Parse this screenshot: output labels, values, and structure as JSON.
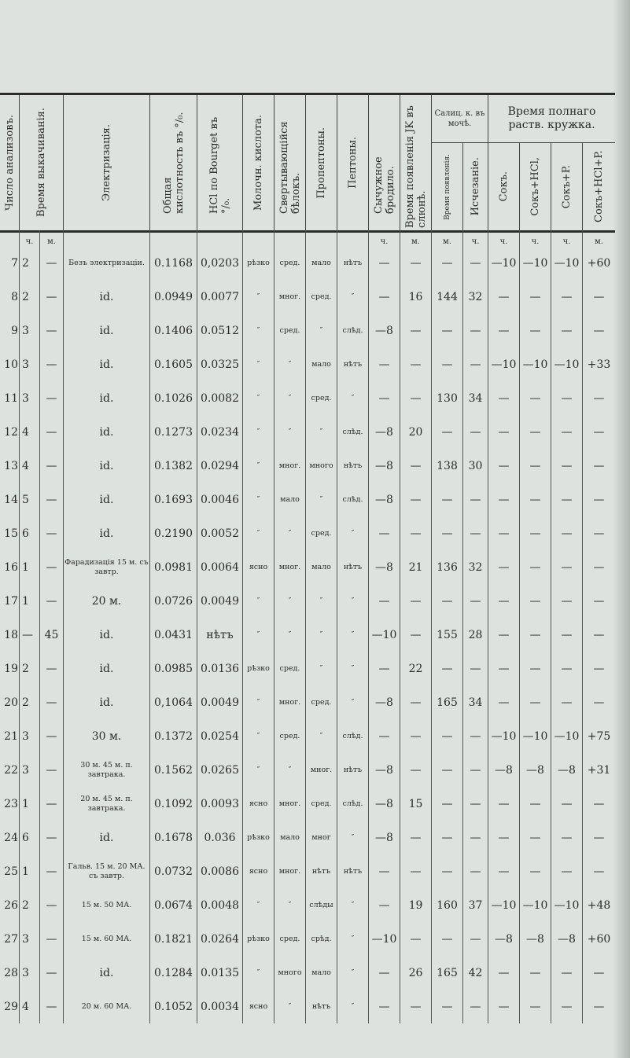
{
  "header": {
    "count": "Число анализовъ.",
    "pump_time": "Время выкачиванія.",
    "electrization": "Электризація.",
    "total_acidity": "Общая кислотность въ °/₀.",
    "hcl_bourget": "HCl по Bourget въ °/₀.",
    "lactic": "Молочн. кислота.",
    "curdling": "Свертывающійся бѣлокъ.",
    "propeptones": "Пропептоны.",
    "peptones": "Пептоны.",
    "rennet": "Сычужное бродило.",
    "jk_time": "Время появленія JK въ слюнѣ.",
    "salicyl_group": "Салиц. к. въ мочѣ.",
    "salicyl_appear": "Время появленія.",
    "salicyl_disappear": "Исчезаніе.",
    "dissolve_group": "Время полнаго раств. кружка.",
    "juice": "Сокъ.",
    "juice_hcl": "Сокъ+HCl,",
    "juice_p": "Сокъ+P.",
    "juice_hcl_p": "Сокъ+HCl+P."
  },
  "units": [
    "ч.",
    "м.",
    "ч.",
    "м.",
    "м.",
    "ч.",
    "ч.",
    "ч.",
    "ч.",
    "м."
  ],
  "rows": [
    [
      "7",
      "2",
      "—",
      "Безъ электризаціи.",
      "0.1168",
      "0,0203",
      "рѣзко",
      "сред.",
      "мало",
      "нѣтъ",
      "—",
      "—",
      "—",
      "—",
      "—10",
      "—10",
      "—10",
      "+60"
    ],
    [
      "8",
      "2",
      "—",
      "id.",
      "0.0949",
      "0.0077",
      "″",
      "мног.",
      "сред.",
      "″",
      "—",
      "16",
      "144",
      "32",
      "—",
      "—",
      "—",
      "—"
    ],
    [
      "9",
      "3",
      "—",
      "id.",
      "0.1406",
      "0.0512",
      "″",
      "сред.",
      "″",
      "слѣд.",
      "—8",
      "—",
      "—",
      "—",
      "—",
      "—",
      "—",
      "—"
    ],
    [
      "10",
      "3",
      "—",
      "id.",
      "0.1605",
      "0.0325",
      "″",
      "″",
      "мало",
      "нѣтъ",
      "—",
      "—",
      "—",
      "—",
      "—10",
      "—10",
      "—10",
      "+33"
    ],
    [
      "11",
      "3",
      "—",
      "id.",
      "0.1026",
      "0.0082",
      "″",
      "″",
      "сред.",
      "″",
      "—",
      "—",
      "130",
      "34",
      "—",
      "—",
      "—",
      "—"
    ],
    [
      "12",
      "4",
      "—",
      "id.",
      "0.1273",
      "0.0234",
      "″",
      "″",
      "″",
      "слѣд.",
      "—8",
      "20",
      "—",
      "—",
      "—",
      "—",
      "—",
      "—"
    ],
    [
      "13",
      "4",
      "—",
      "id.",
      "0.1382",
      "0.0294",
      "″",
      "мног.",
      "много",
      "нѣтъ",
      "—8",
      "—",
      "138",
      "30",
      "—",
      "—",
      "—",
      "—"
    ],
    [
      "14",
      "5",
      "—",
      "id.",
      "0.1693",
      "0.0046",
      "″",
      "мало",
      "″",
      "слѣд.",
      "—8",
      "—",
      "—",
      "—",
      "—",
      "—",
      "—",
      "—"
    ],
    [
      "15",
      "6",
      "—",
      "id.",
      "0.2190",
      "0.0052",
      "″",
      "″",
      "сред.",
      "″",
      "—",
      "—",
      "—",
      "—",
      "—",
      "—",
      "—",
      "—"
    ],
    [
      "16",
      "1",
      "—",
      "Фарадизація 15 м. съ завтр.",
      "0.0981",
      "0.0064",
      "ясно",
      "мног.",
      "мало",
      "нѣтъ",
      "—8",
      "21",
      "136",
      "32",
      "—",
      "—",
      "—",
      "—"
    ],
    [
      "17",
      "1",
      "—",
      "20 м.",
      "0.0726",
      "0.0049",
      "″",
      "″",
      "″",
      "″",
      "—",
      "—",
      "—",
      "—",
      "—",
      "—",
      "—",
      "—"
    ],
    [
      "18",
      "—",
      "45",
      "id.",
      "0.0431",
      "нѣтъ",
      "″",
      "″",
      "″",
      "″",
      "—10",
      "—",
      "155",
      "28",
      "—",
      "—",
      "—",
      "—"
    ],
    [
      "19",
      "2",
      "—",
      "id.",
      "0.0985",
      "0.0136",
      "рѣзко",
      "сред.",
      "″",
      "″",
      "—",
      "22",
      "—",
      "—",
      "—",
      "—",
      "—",
      "—"
    ],
    [
      "20",
      "2",
      "—",
      "id.",
      "0,1064",
      "0.0049",
      "″",
      "мног.",
      "сред.",
      "″",
      "—8",
      "—",
      "165",
      "34",
      "—",
      "—",
      "—",
      "—"
    ],
    [
      "21",
      "3",
      "—",
      "30 м.",
      "0.1372",
      "0.0254",
      "″",
      "сред.",
      "″",
      "слѣд.",
      "—",
      "—",
      "—",
      "—",
      "—10",
      "—10",
      "—10",
      "+75"
    ],
    [
      "22",
      "3",
      "—",
      "30 м. 45 м. п. завтрака.",
      "0.1562",
      "0.0265",
      "″",
      "″",
      "мног.",
      "нѣтъ",
      "—8",
      "—",
      "—",
      "—",
      "—8",
      "—8",
      "—8",
      "+31"
    ],
    [
      "23",
      "1",
      "—",
      "20 м. 45 м. п. завтрака.",
      "0.1092",
      "0.0093",
      "ясно",
      "мног.",
      "сред.",
      "слѣд.",
      "—8",
      "15",
      "—",
      "—",
      "—",
      "—",
      "—",
      "—"
    ],
    [
      "24",
      "6",
      "—",
      "id.",
      "0.1678",
      "0.036",
      "рѣзко",
      "мало",
      "мног",
      "″",
      "—8",
      "—",
      "—",
      "—",
      "—",
      "—",
      "—",
      "—"
    ],
    [
      "25",
      "1",
      "—",
      "Гальв. 15 м. 20 МА. съ завтр.",
      "0.0732",
      "0.0086",
      "ясно",
      "мног.",
      "нѣтъ",
      "нѣтъ",
      "—",
      "—",
      "—",
      "—",
      "—",
      "—",
      "—",
      "—"
    ],
    [
      "26",
      "2",
      "—",
      "15 м. 50 МА.",
      "0.0674",
      "0.0048",
      "″",
      "″",
      "слѣды",
      "″",
      "—",
      "19",
      "160",
      "37",
      "—10",
      "—10",
      "—10",
      "+48"
    ],
    [
      "27",
      "3",
      "—",
      "15 м. 60 МА.",
      "0.1821",
      "0.0264",
      "рѣзко",
      "сред.",
      "срѣд.",
      "″",
      "—10",
      "—",
      "—",
      "—",
      "—8",
      "—8",
      "—8",
      "+60"
    ],
    [
      "28",
      "3",
      "—",
      "id.",
      "0.1284",
      "0.0135",
      "″",
      "много",
      "мало",
      "″",
      "—",
      "26",
      "165",
      "42",
      "—",
      "—",
      "—",
      "—"
    ],
    [
      "29",
      "4",
      "—",
      "20 м. 60 МА.",
      "0.1052",
      "0.0034",
      "ясно",
      "″",
      "нѣтъ",
      "″",
      "—",
      "—",
      "—",
      "—",
      "—",
      "—",
      "—",
      "—"
    ]
  ]
}
